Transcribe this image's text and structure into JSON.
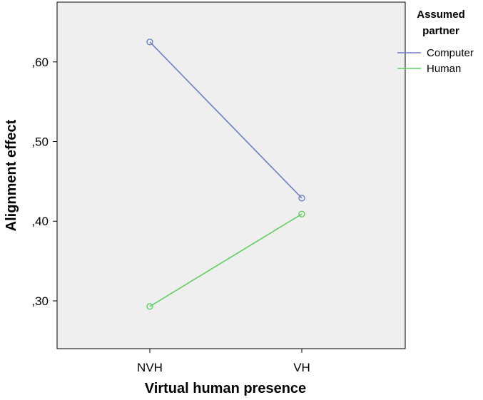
{
  "chart_data": {
    "type": "line",
    "categories": [
      "NVH",
      "VH"
    ],
    "xlabel": "Virtual human presence",
    "ylabel": "Alignment effect",
    "ylim": [
      0.24,
      0.675
    ],
    "yticks": [
      0.3,
      0.4,
      0.5,
      0.6
    ],
    "ytick_labels": [
      ",30",
      ",40",
      ",50",
      ",60"
    ],
    "grid": false,
    "legend": {
      "title_lines": [
        "Assumed",
        "partner"
      ],
      "placement": "right"
    },
    "series": [
      {
        "name": "Computer",
        "values": [
          0.625,
          0.429
        ],
        "color": "#6a7fc8"
      },
      {
        "name": "Human",
        "values": [
          0.293,
          0.409
        ],
        "color": "#5fcf5f"
      }
    ],
    "colors": {
      "plot_background": "#efefef",
      "frame": "#000000"
    }
  }
}
